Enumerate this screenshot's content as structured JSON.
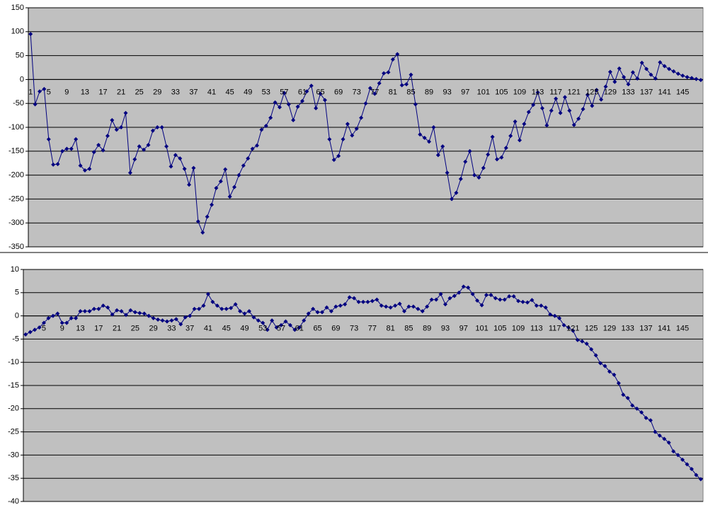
{
  "chart_data": [
    {
      "type": "line",
      "color": "#000080",
      "grid": true,
      "ylim": [
        -350,
        150
      ],
      "yticks": [
        -350,
        -300,
        -250,
        -200,
        -150,
        -100,
        -50,
        0,
        50,
        100,
        150
      ],
      "categories": [
        "1",
        null,
        null,
        null,
        "5",
        null,
        null,
        null,
        "9",
        null,
        null,
        null,
        "13",
        null,
        null,
        null,
        "17",
        null,
        null,
        null,
        "21",
        null,
        null,
        null,
        "25",
        null,
        null,
        null,
        "29",
        null,
        null,
        null,
        "33",
        null,
        null,
        null,
        "37",
        null,
        null,
        null,
        "41",
        null,
        null,
        null,
        "45",
        null,
        null,
        null,
        "49",
        null,
        null,
        null,
        "53",
        null,
        null,
        null,
        "57",
        null,
        null,
        null,
        "61",
        null,
        null,
        null,
        "65",
        null,
        null,
        null,
        "69",
        null,
        null,
        null,
        "73",
        null,
        null,
        null,
        "77",
        null,
        null,
        null,
        "81",
        null,
        null,
        null,
        "85",
        null,
        null,
        null,
        "89",
        null,
        null,
        null,
        "93",
        null,
        null,
        null,
        "97",
        null,
        null,
        null,
        "101",
        null,
        null,
        null,
        "105",
        null,
        null,
        null,
        "109",
        null,
        null,
        null,
        "113",
        null,
        null,
        null,
        "117",
        null,
        null,
        null,
        "121",
        null,
        null,
        null,
        "125",
        null,
        null,
        null,
        "129",
        null,
        null,
        null,
        "133",
        null,
        null,
        null,
        "137",
        null,
        null,
        null,
        "141",
        null,
        null,
        null,
        "145",
        null,
        null,
        null,
        null
      ],
      "values": [
        95,
        -52,
        -25,
        -20,
        -125,
        -178,
        -177,
        -150,
        -145,
        -145,
        -125,
        -180,
        -190,
        -187,
        -152,
        -137,
        -148,
        -118,
        -85,
        -105,
        -100,
        -70,
        -195,
        -167,
        -140,
        -147,
        -137,
        -107,
        -100,
        -100,
        -140,
        -182,
        -158,
        -165,
        -187,
        -220,
        -185,
        -297,
        -320,
        -287,
        -262,
        -227,
        -213,
        -188,
        -245,
        -225,
        -200,
        -180,
        -165,
        -145,
        -138,
        -105,
        -97,
        -80,
        -48,
        -58,
        -28,
        -52,
        -85,
        -57,
        -45,
        -25,
        -13,
        -60,
        -30,
        -43,
        -125,
        -168,
        -160,
        -125,
        -93,
        -117,
        -103,
        -80,
        -50,
        -18,
        -30,
        -8,
        13,
        15,
        42,
        53,
        -12,
        -10,
        10,
        -52,
        -115,
        -122,
        -130,
        -100,
        -158,
        -140,
        -195,
        -250,
        -237,
        -208,
        -172,
        -150,
        -200,
        -205,
        -185,
        -157,
        -120,
        -167,
        -163,
        -143,
        -118,
        -88,
        -127,
        -93,
        -68,
        -53,
        -27,
        -60,
        -96,
        -65,
        -40,
        -70,
        -37,
        -65,
        -95,
        -82,
        -62,
        -32,
        -55,
        -22,
        -42,
        -15,
        16,
        -5,
        23,
        5,
        -10,
        15,
        2,
        35,
        22,
        10,
        2,
        36,
        28,
        22,
        17,
        12,
        8,
        5,
        3,
        1,
        -1
      ]
    },
    {
      "type": "line",
      "color": "#000080",
      "grid": true,
      "ylim": [
        -40,
        10
      ],
      "yticks": [
        -40,
        -35,
        -30,
        -25,
        -20,
        -15,
        -10,
        -5,
        0,
        5,
        10
      ],
      "categories": [
        null,
        null,
        null,
        null,
        "5",
        null,
        null,
        null,
        "9",
        null,
        null,
        null,
        "13",
        null,
        null,
        null,
        "17",
        null,
        null,
        null,
        "21",
        null,
        null,
        null,
        "25",
        null,
        null,
        null,
        "29",
        null,
        null,
        null,
        "33",
        null,
        null,
        null,
        "37",
        null,
        null,
        null,
        "41",
        null,
        null,
        null,
        "45",
        null,
        null,
        null,
        "49",
        null,
        null,
        null,
        "53",
        null,
        null,
        null,
        "57",
        null,
        null,
        null,
        "61",
        null,
        null,
        null,
        "65",
        null,
        null,
        null,
        "69",
        null,
        null,
        null,
        "73",
        null,
        null,
        null,
        "77",
        null,
        null,
        null,
        "81",
        null,
        null,
        null,
        "85",
        null,
        null,
        null,
        "89",
        null,
        null,
        null,
        "93",
        null,
        null,
        null,
        "97",
        null,
        null,
        null,
        "101",
        null,
        null,
        null,
        "105",
        null,
        null,
        null,
        "109",
        null,
        null,
        null,
        "113",
        null,
        null,
        null,
        "117",
        null,
        null,
        null,
        "121",
        null,
        null,
        null,
        "125",
        null,
        null,
        null,
        "129",
        null,
        null,
        null,
        "133",
        null,
        null,
        null,
        "137",
        null,
        null,
        null,
        "141",
        null,
        null,
        null,
        "145",
        null,
        null,
        null,
        null
      ],
      "values": [
        -4,
        -3.5,
        -3,
        -2.5,
        -1.5,
        -0.5,
        0,
        0.5,
        -1.5,
        -1.5,
        -0.5,
        -0.5,
        1,
        1,
        1,
        1.5,
        1.5,
        2.2,
        1.8,
        0.3,
        1.2,
        1,
        0.2,
        1.2,
        0.8,
        0.6,
        0.5,
        0,
        -0.5,
        -0.8,
        -1,
        -1.2,
        -1,
        -0.7,
        -1.8,
        -0.3,
        0,
        1.5,
        1.5,
        2.2,
        4.7,
        3,
        2.2,
        1.5,
        1.5,
        1.7,
        2.5,
        1,
        0.5,
        1,
        -0.3,
        -1,
        -1.5,
        -3,
        -1,
        -2.5,
        -2,
        -1.2,
        -2,
        -3,
        -2.5,
        -1,
        0.5,
        1.5,
        0.8,
        0.8,
        1.8,
        1,
        2,
        2.2,
        2.5,
        4,
        3.8,
        3,
        3,
        3,
        3.2,
        3.5,
        2.2,
        2,
        1.8,
        2.2,
        2.6,
        1,
        2,
        2,
        1.5,
        1,
        2,
        3.5,
        3.5,
        4.7,
        2.5,
        3.8,
        4.3,
        5,
        6.3,
        6.1,
        4.7,
        3.3,
        2.3,
        4.5,
        4.5,
        3.8,
        3.5,
        3.5,
        4.2,
        4.2,
        3.2,
        3,
        2.9,
        3.4,
        2.2,
        2.2,
        1.8,
        0.3,
        0,
        -0.5,
        -2,
        -2.5,
        -3.2,
        -5.2,
        -5.5,
        -6,
        -7.2,
        -8.5,
        -10.2,
        -10.8,
        -12,
        -12.7,
        -14.5,
        -17,
        -17.7,
        -19.3,
        -20,
        -20.8,
        -22,
        -22.5,
        -25,
        -25.8,
        -26.5,
        -27.3,
        -29.2,
        -30,
        -31,
        -32,
        -33,
        -34.3,
        -35.2
      ]
    }
  ]
}
